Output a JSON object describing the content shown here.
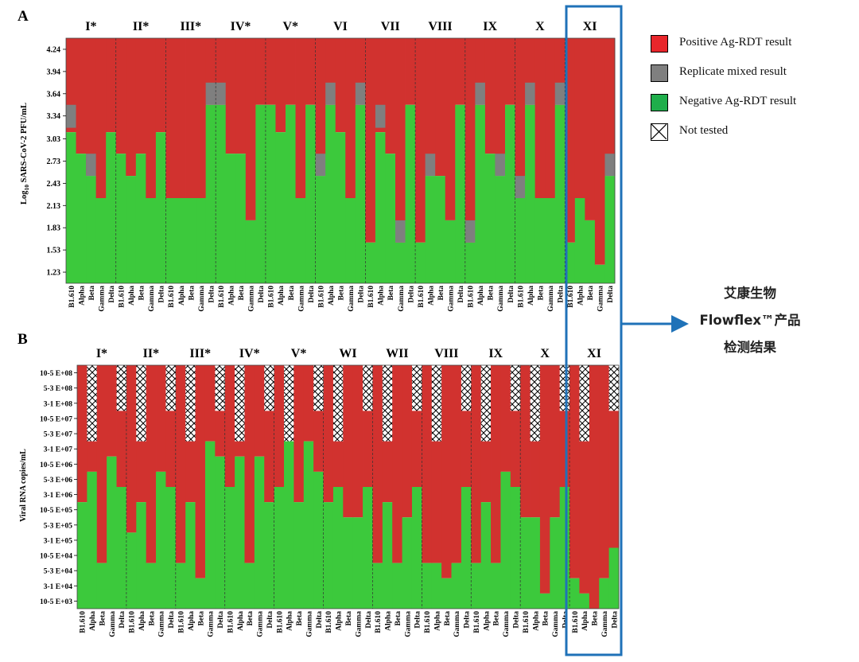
{
  "colors": {
    "positive": "#d1322f",
    "mixed": "#7f7f7f",
    "negative": "#3cc93c",
    "highlight": "#1f72b8",
    "grid": "#555555"
  },
  "legend": {
    "items": [
      {
        "key": "positive",
        "label": "Positive Ag-RDT result"
      },
      {
        "key": "mixed",
        "label": "Replicate mixed result"
      },
      {
        "key": "negative",
        "label": "Negative Ag-RDT result"
      },
      {
        "key": "not_tested",
        "label": "Not tested"
      }
    ]
  },
  "callout": {
    "line1": "艾康生物",
    "line2": "Flowflex™产品",
    "line3": "检测结果"
  },
  "chart_data": [
    {
      "type": "heatmap",
      "panel": "A",
      "ylabel": "Log10 SARS-CoV-2 PFU/mL",
      "ylabel_main": "Log",
      "ylabel_sub": "10",
      "ylabel_rest": " SARS-CoV-2 PFU/mL",
      "yticks": [
        "4.24",
        "3.94",
        "3.64",
        "3.34",
        "3.03",
        "2.73",
        "2.43",
        "2.13",
        "1.83",
        "1.53",
        "1.23"
      ],
      "variants": [
        "B1.610",
        "Alpha",
        "Beta",
        "Gamma",
        "Delta"
      ],
      "highlight_group": "XI",
      "groups": [
        {
          "label": "I*",
          "neg": [
            3.12,
            2.83,
            2.53,
            2.23,
            3.12
          ],
          "mixed": [
            [
              3.18,
              3.49
            ],
            null,
            [
              2.53,
              2.83
            ],
            null,
            null
          ]
        },
        {
          "label": "II*",
          "neg": [
            2.83,
            2.53,
            2.83,
            2.23,
            3.12
          ],
          "mixed": [
            null,
            null,
            null,
            null,
            null
          ]
        },
        {
          "label": "III*",
          "neg": [
            2.23,
            2.23,
            2.23,
            2.23,
            3.49
          ],
          "mixed": [
            null,
            null,
            null,
            null,
            [
              3.49,
              3.79
            ]
          ]
        },
        {
          "label": "IV*",
          "neg": [
            3.49,
            2.83,
            2.83,
            1.93,
            3.49
          ],
          "mixed": [
            [
              3.49,
              3.79
            ],
            null,
            null,
            null,
            null
          ]
        },
        {
          "label": "V*",
          "neg": [
            3.49,
            3.12,
            3.49,
            2.23,
            3.49
          ],
          "mixed": [
            null,
            null,
            null,
            null,
            null
          ]
        },
        {
          "label": "VI",
          "neg": [
            2.53,
            3.49,
            3.12,
            2.23,
            3.49
          ],
          "mixed": [
            [
              2.53,
              2.83
            ],
            [
              3.49,
              3.79
            ],
            null,
            null,
            [
              3.49,
              3.79
            ]
          ]
        },
        {
          "label": "VII",
          "neg": [
            1.63,
            3.12,
            2.83,
            1.63,
            3.49
          ],
          "mixed": [
            null,
            [
              3.18,
              3.49
            ],
            null,
            [
              1.63,
              1.93
            ],
            null
          ]
        },
        {
          "label": "VIII",
          "neg": [
            1.63,
            2.53,
            2.53,
            1.93,
            3.49
          ],
          "mixed": [
            null,
            [
              2.53,
              2.83
            ],
            null,
            null,
            null
          ]
        },
        {
          "label": "IX",
          "neg": [
            1.63,
            3.49,
            2.83,
            2.53,
            3.49
          ],
          "mixed": [
            [
              1.63,
              1.93
            ],
            [
              3.49,
              3.79
            ],
            null,
            [
              2.53,
              2.83
            ],
            null
          ]
        },
        {
          "label": "X",
          "neg": [
            2.23,
            3.49,
            2.23,
            2.23,
            3.49
          ],
          "mixed": [
            [
              2.23,
              2.53
            ],
            [
              3.49,
              3.79
            ],
            null,
            null,
            [
              3.49,
              3.79
            ]
          ]
        },
        {
          "label": "XI",
          "neg": [
            1.63,
            2.23,
            1.93,
            1.33,
            2.53
          ],
          "mixed": [
            null,
            null,
            null,
            null,
            [
              2.53,
              2.83
            ]
          ]
        }
      ]
    },
    {
      "type": "heatmap",
      "panel": "B",
      "ylabel": "Viral RNA copies/mL",
      "yticks": [
        "10-5 E+08",
        "5-3 E+08",
        "3-1 E+08",
        "10-5 E+07",
        "5-3 E+07",
        "3-1 E+07",
        "10-5 E+06",
        "5-3 E+06",
        "3-1 E+06",
        "10-5 E+05",
        "5-3 E+05",
        "3-1 E+05",
        "10-5 E+04",
        "5-3 E+04",
        "3-1 E+04",
        "10-5 E+03"
      ],
      "variants": [
        "B1.610",
        "Alpha",
        "Beta",
        "Gamma",
        "Delta"
      ],
      "xlabels_last": [
        "B1.610",
        "Alpha",
        "Beta",
        "Gamma",
        "Delta"
      ],
      "highlight_group": "XI",
      "groups": [
        {
          "label": "I*",
          "neg": [
            7,
            9,
            3,
            10,
            8
          ],
          "nt": [
            0,
            5,
            0,
            0,
            3
          ]
        },
        {
          "label": "II*",
          "neg": [
            5,
            7,
            3,
            9,
            8
          ],
          "nt": [
            0,
            5,
            0,
            0,
            3
          ]
        },
        {
          "label": "III*",
          "neg": [
            3,
            7,
            2,
            11,
            10
          ],
          "nt": [
            0,
            5,
            0,
            0,
            3
          ]
        },
        {
          "label": "IV*",
          "neg": [
            8,
            10,
            3,
            10,
            7
          ],
          "nt": [
            0,
            5,
            0,
            0,
            3
          ]
        },
        {
          "label": "V*",
          "neg": [
            8,
            11,
            7,
            11,
            9
          ],
          "nt": [
            0,
            5,
            0,
            0,
            3
          ]
        },
        {
          "label": "WI",
          "neg": [
            7,
            8,
            6,
            6,
            8
          ],
          "nt": [
            0,
            5,
            0,
            0,
            3
          ]
        },
        {
          "label": "WII",
          "neg": [
            3,
            7,
            3,
            6,
            8
          ],
          "nt": [
            0,
            5,
            0,
            0,
            3
          ]
        },
        {
          "label": "VIII",
          "neg": [
            3,
            3,
            2,
            3,
            8
          ],
          "nt": [
            0,
            5,
            0,
            0,
            3
          ]
        },
        {
          "label": "IX",
          "neg": [
            3,
            7,
            3,
            9,
            8
          ],
          "nt": [
            0,
            5,
            0,
            0,
            3
          ]
        },
        {
          "label": "X",
          "neg": [
            6,
            6,
            1,
            6,
            8
          ],
          "nt": [
            0,
            5,
            0,
            0,
            3
          ]
        },
        {
          "label": "XI",
          "neg": [
            2,
            1,
            0,
            2,
            4
          ],
          "nt": [
            0,
            5,
            0,
            0,
            3
          ]
        }
      ]
    }
  ]
}
